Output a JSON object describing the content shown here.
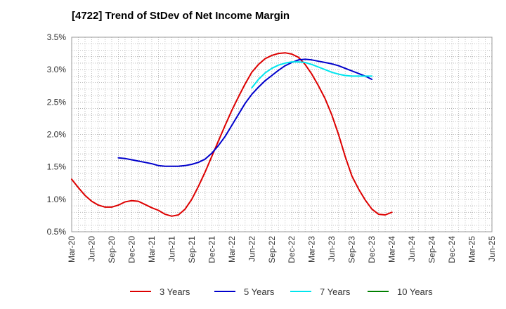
{
  "title": "[4722]  Trend of StDev of Net Income Margin",
  "chart_data": {
    "type": "line",
    "title": "[4722]  Trend of StDev of Net Income Margin",
    "xlabel": "",
    "ylabel": "",
    "x_tick_labels": [
      "Mar-20",
      "Jun-20",
      "Sep-20",
      "Dec-20",
      "Mar-21",
      "Jun-21",
      "Sep-21",
      "Dec-21",
      "Mar-22",
      "Jun-22",
      "Sep-22",
      "Dec-22",
      "Mar-23",
      "Jun-23",
      "Sep-23",
      "Dec-23",
      "Mar-24",
      "Jun-24",
      "Sep-24",
      "Dec-24",
      "Mar-25",
      "Jun-25"
    ],
    "y_tick_labels": [
      "0.5%",
      "1.0%",
      "1.5%",
      "2.0%",
      "2.5%",
      "3.0%",
      "3.5%"
    ],
    "ylim": [
      0.5,
      3.5
    ],
    "y_unit": "%",
    "grid": true,
    "grid_style": "dotted",
    "legend_position": "bottom",
    "series": [
      {
        "name": "3 Years",
        "color": "#dd0000",
        "values": [
          1.31,
          1.18,
          1.06,
          0.97,
          0.91,
          0.88,
          0.88,
          0.91,
          0.96,
          0.98,
          0.97,
          0.92,
          0.87,
          0.83,
          0.77,
          0.74,
          0.76,
          0.85,
          1.0,
          1.2,
          1.42,
          1.66,
          1.9,
          2.14,
          2.37,
          2.58,
          2.78,
          2.96,
          3.08,
          3.17,
          3.22,
          3.25,
          3.26,
          3.24,
          3.19,
          3.08,
          2.93,
          2.75,
          2.55,
          2.3,
          2.0,
          1.66,
          1.36,
          1.16,
          0.99,
          0.85,
          0.77,
          0.76,
          0.8
        ]
      },
      {
        "name": "5 Years",
        "color": "#0000cc",
        "values": [
          null,
          null,
          null,
          null,
          null,
          null,
          null,
          1.64,
          1.63,
          1.61,
          1.59,
          1.57,
          1.55,
          1.52,
          1.51,
          1.51,
          1.51,
          1.52,
          1.54,
          1.57,
          1.62,
          1.71,
          1.83,
          1.97,
          2.14,
          2.31,
          2.48,
          2.62,
          2.73,
          2.83,
          2.91,
          2.99,
          3.06,
          3.11,
          3.15,
          3.16,
          3.15,
          3.13,
          3.11,
          3.09,
          3.06,
          3.02,
          2.98,
          2.94,
          2.9,
          2.85
        ]
      },
      {
        "name": "7 Years",
        "color": "#00e5ee",
        "values": [
          null,
          null,
          null,
          null,
          null,
          null,
          null,
          null,
          null,
          null,
          null,
          null,
          null,
          null,
          null,
          null,
          null,
          null,
          null,
          null,
          null,
          null,
          null,
          null,
          null,
          null,
          null,
          2.72,
          2.85,
          2.95,
          3.02,
          3.07,
          3.1,
          3.12,
          3.12,
          3.11,
          3.08,
          3.04,
          3.0,
          2.96,
          2.93,
          2.91,
          2.9,
          2.9,
          2.9,
          2.9
        ]
      },
      {
        "name": "10 Years",
        "color": "#008000",
        "values": []
      }
    ]
  }
}
